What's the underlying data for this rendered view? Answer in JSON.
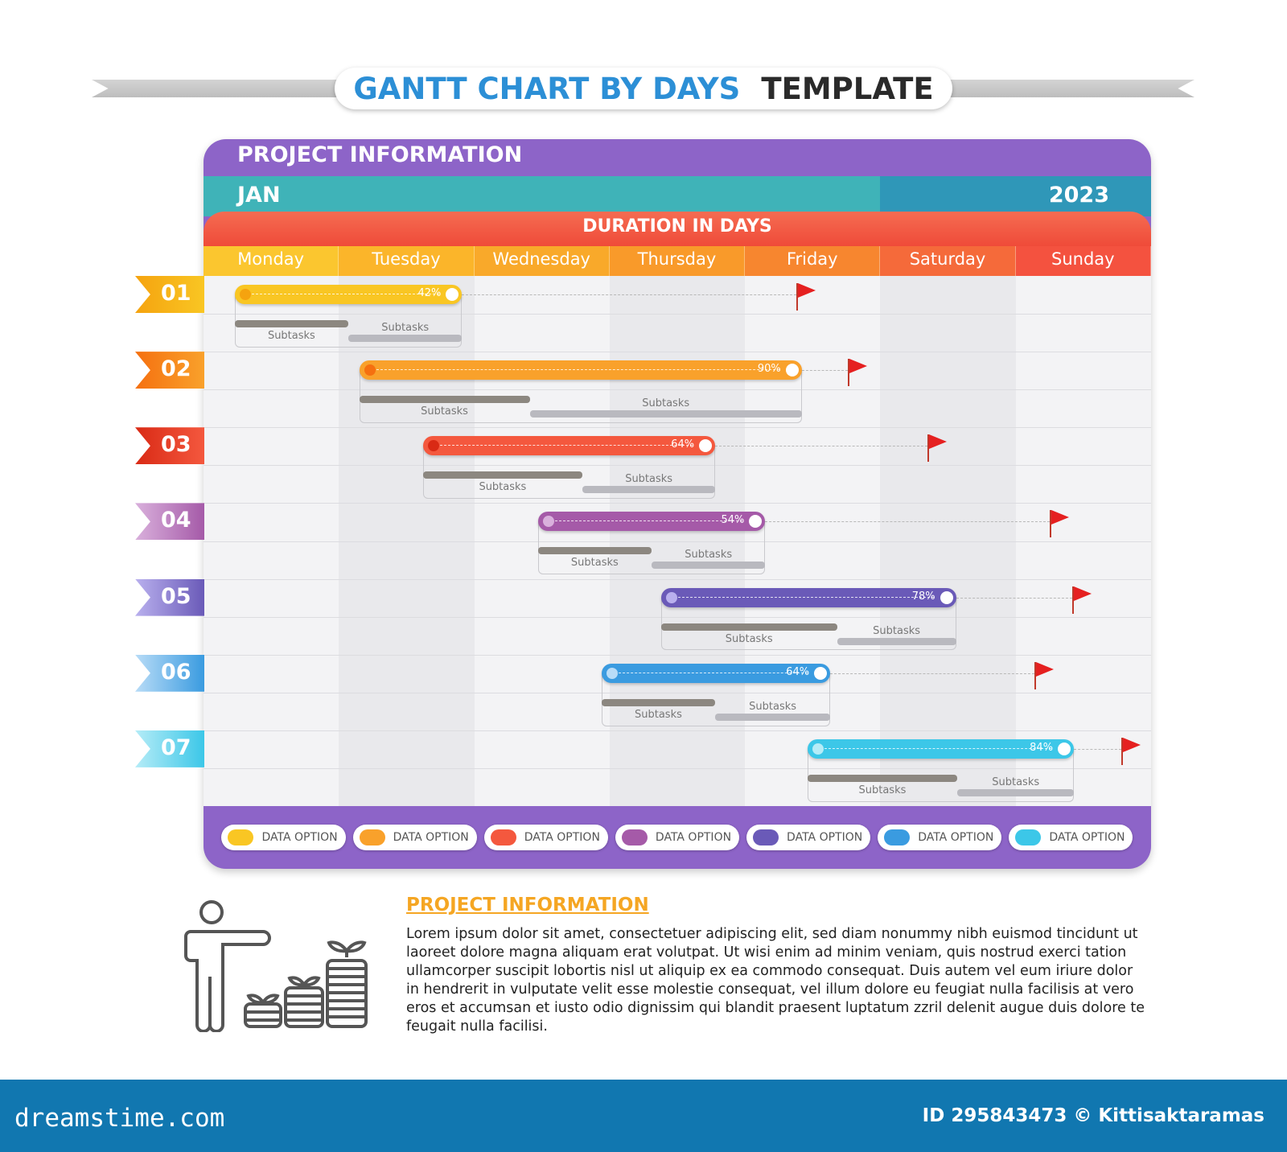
{
  "title": {
    "part1": "GANTT CHART BY DAYS",
    "part2": "TEMPLATE"
  },
  "header": {
    "project": "PROJECT INFORMATION",
    "month": "JAN",
    "year": "2023",
    "duration": "DURATION IN DAYS"
  },
  "colors": {
    "header_purple": "#8d64c8",
    "teal": "#3fb3b8",
    "year_blue": "#2f97b8",
    "duration_red": "#f2604a",
    "footer_blue": "#1177b0"
  },
  "chart_data": {
    "type": "gantt",
    "title": "GANTT CHART BY DAYS TEMPLATE",
    "days": [
      "Monday",
      "Tuesday",
      "Wednesday",
      "Thursday",
      "Friday",
      "Saturday",
      "Sunday"
    ],
    "day_colors": [
      "#fbc62f",
      "#fbb52a",
      "#f9a92a",
      "#f99a2a",
      "#f7862f",
      "#f56a3a",
      "#f4523f"
    ],
    "tasks": [
      {
        "id": "01",
        "color": "#f9c623",
        "dot": "#f5a30f",
        "start": 0.23,
        "end": 1.91,
        "progress": "42%",
        "split": 1.07,
        "flag": 4.38,
        "sub1": "Subtasks",
        "sub2": "Subtasks"
      },
      {
        "id": "02",
        "color": "#f9a12b",
        "dot": "#f57010",
        "start": 1.15,
        "end": 4.42,
        "progress": "90%",
        "split": 2.41,
        "flag": 4.76,
        "sub1": "Subtasks",
        "sub2": "Subtasks"
      },
      {
        "id": "03",
        "color": "#f4583e",
        "dot": "#d92a15",
        "start": 1.62,
        "end": 3.78,
        "progress": "64%",
        "split": 2.8,
        "flag": 5.35,
        "sub1": "Subtasks",
        "sub2": "Subtasks"
      },
      {
        "id": "04",
        "color": "#a55aa8",
        "dot": "#d9b0dc",
        "start": 2.47,
        "end": 4.15,
        "progress": "54%",
        "split": 3.31,
        "flag": 6.25,
        "sub1": "Subtasks",
        "sub2": "Subtasks"
      },
      {
        "id": "05",
        "color": "#6a5ab8",
        "dot": "#b9b0ee",
        "start": 3.38,
        "end": 5.56,
        "progress": "78%",
        "split": 4.68,
        "flag": 6.42,
        "sub1": "Subtasks",
        "sub2": "Subtasks"
      },
      {
        "id": "06",
        "color": "#3a9be0",
        "dot": "#b8dcf7",
        "start": 2.94,
        "end": 4.63,
        "progress": "64%",
        "split": 3.78,
        "flag": 6.14,
        "sub1": "Subtasks",
        "sub2": "Subtasks"
      },
      {
        "id": "07",
        "color": "#3cc7e8",
        "dot": "#b5ecf7",
        "start": 4.46,
        "end": 6.43,
        "progress": "84%",
        "split": 5.57,
        "flag": 6.78,
        "sub1": "Subtasks",
        "sub2": "Subtasks"
      }
    ]
  },
  "legend": [
    "DATA OPTION",
    "DATA OPTION",
    "DATA OPTION",
    "DATA OPTION",
    "DATA OPTION",
    "DATA OPTION",
    "DATA OPTION"
  ],
  "info": {
    "title": "PROJECT INFORMATION",
    "text": "Lorem ipsum dolor sit amet, consectetuer adipiscing elit, sed diam nonummy nibh euismod tincidunt ut laoreet dolore magna aliquam erat volutpat. Ut wisi enim ad minim veniam, quis nostrud exerci tation ullamcorper suscipit lobortis nisl ut aliquip ex ea commodo consequat. Duis autem vel eum iriure dolor in hendrerit in vulputate velit esse molestie consequat, vel illum dolore eu feugiat nulla facilisis at vero eros et accumsan et iusto odio dignissim qui blandit praesent luptatum zzril delenit augue duis dolore te feugait nulla facilisi."
  },
  "footer": {
    "logo": "dreamstime.com",
    "credit": "ID 295843473 © Kittisaktaramas"
  }
}
